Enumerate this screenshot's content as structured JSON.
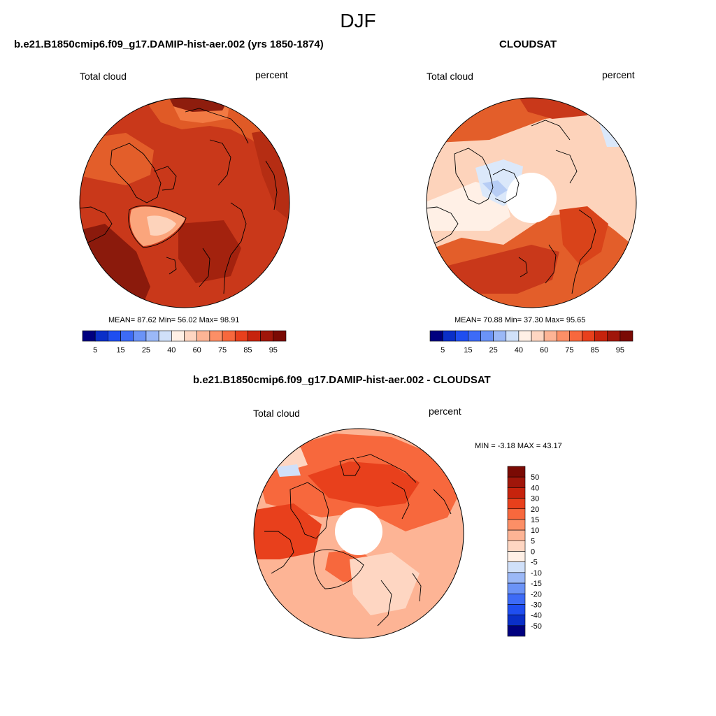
{
  "figure": {
    "season": "DJF"
  },
  "chart_data": [
    {
      "type": "heatmap",
      "projection": "north polar stereographic",
      "title": "b.e21.B1850cmip6.f09_g17.DAMIP-hist-aer.002 (yrs 1850-1874)",
      "left_label": "Total cloud",
      "right_label": "percent",
      "stats_text": "MEAN=  87.62  Min=  56.02  Max=  98.91",
      "stats": {
        "mean": 87.62,
        "min": 56.02,
        "max": 98.91
      },
      "colorbar_orientation": "horizontal",
      "colorbar_ticks": [
        "5",
        "15",
        "25",
        "40",
        "60",
        "75",
        "85",
        "95"
      ],
      "polar_hole": false
    },
    {
      "type": "heatmap",
      "projection": "north polar stereographic",
      "title": "CLOUDSAT",
      "left_label": "Total cloud",
      "right_label": "percent",
      "stats_text": "MEAN=  70.88  Min=  37.30  Max=  95.65",
      "stats": {
        "mean": 70.88,
        "min": 37.3,
        "max": 95.65
      },
      "colorbar_orientation": "horizontal",
      "colorbar_ticks": [
        "5",
        "15",
        "25",
        "40",
        "60",
        "75",
        "85",
        "95"
      ],
      "polar_hole": true
    },
    {
      "type": "heatmap",
      "projection": "north polar stereographic",
      "title": "b.e21.B1850cmip6.f09_g17.DAMIP-hist-aer.002 - CLOUDSAT",
      "left_label": "Total cloud",
      "right_label": "percent",
      "stats_text": "MIN =  -3.18 MAX =  43.17",
      "stats": {
        "min": -3.18,
        "max": 43.17
      },
      "colorbar_orientation": "vertical",
      "colorbar_ticks": [
        "50",
        "40",
        "30",
        "20",
        "15",
        "10",
        "5",
        "0",
        "-5",
        "-10",
        "-15",
        "-20",
        "-30",
        "-40",
        "-50"
      ],
      "polar_hole": true
    }
  ],
  "palette": {
    "levels_16": [
      "#00007f",
      "#0a2fc8",
      "#1f4ef0",
      "#3d6bf7",
      "#6b93f7",
      "#9bb8f7",
      "#d0e0f9",
      "#fff0e6",
      "#fed6c2",
      "#fdb495",
      "#fc8f66",
      "#f7683d",
      "#e8401c",
      "#c6230d",
      "#a0160a",
      "#7a0a04"
    ],
    "field_colors": {
      "very_dark": "#8b1a0c",
      "dark": "#b32b12",
      "mid": "#d9431a",
      "orange": "#f0753f",
      "light": "#fba57c",
      "pale": "#fdd3bb",
      "cream": "#fff0e6",
      "icy": "#dbe8fa",
      "blue": "#b7cdf5"
    },
    "coastline": "#000000"
  }
}
